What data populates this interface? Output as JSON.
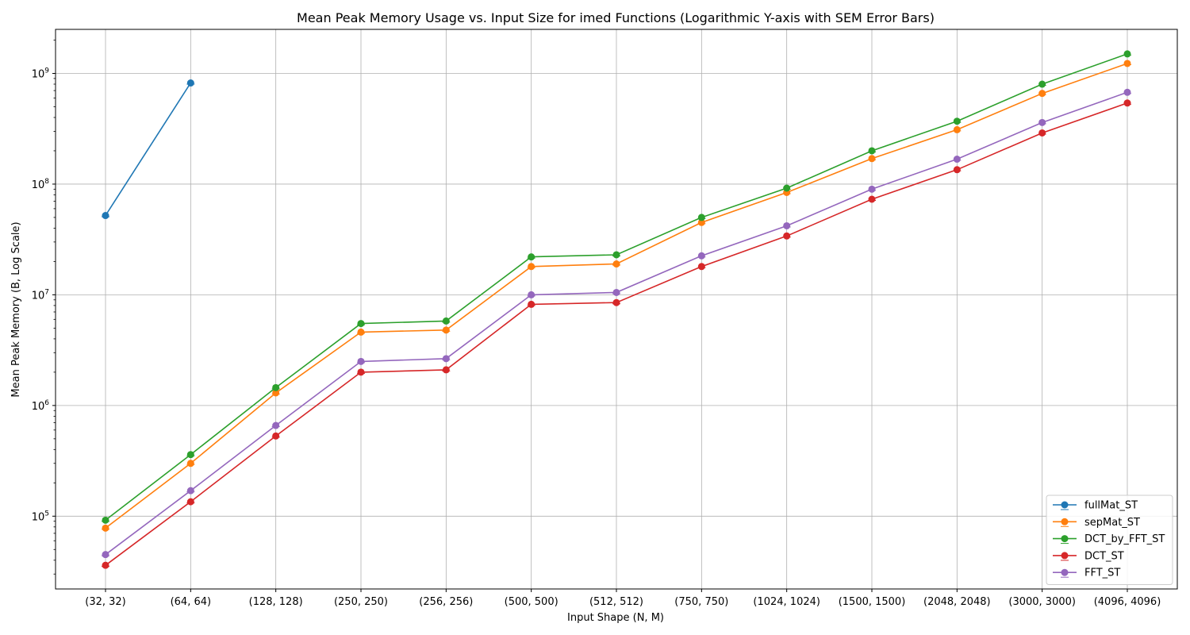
{
  "chart_data": {
    "type": "line",
    "title": "Mean Peak Memory Usage vs. Input Size for imed Functions (Logarithmic Y-axis with SEM Error Bars)",
    "xlabel": "Input Shape (N, M)",
    "ylabel": "Mean Peak Memory (B, Log Scale)",
    "yscale": "log",
    "ylim": [
      22000,
      2500000000
    ],
    "grid": true,
    "legend_position": "lower right",
    "categories": [
      "(32, 32)",
      "(64, 64)",
      "(128, 128)",
      "(250, 250)",
      "(256, 256)",
      "(500, 500)",
      "(512, 512)",
      "(750, 750)",
      "(1024, 1024)",
      "(1500, 1500)",
      "(2048, 2048)",
      "(3000, 3000)",
      "(4096, 4096)"
    ],
    "yticks": [
      {
        "value": 100000,
        "base": "10",
        "exp": "5"
      },
      {
        "value": 1000000,
        "base": "10",
        "exp": "6"
      },
      {
        "value": 10000000,
        "base": "10",
        "exp": "7"
      },
      {
        "value": 100000000,
        "base": "10",
        "exp": "8"
      },
      {
        "value": 1000000000,
        "base": "10",
        "exp": "9"
      }
    ],
    "series": [
      {
        "name": "fullMat_ST",
        "color": "#1f77b4",
        "values": [
          52000000,
          820000000,
          null,
          null,
          null,
          null,
          null,
          null,
          null,
          null,
          null,
          null,
          null
        ]
      },
      {
        "name": "sepMat_ST",
        "color": "#ff7f0e",
        "values": [
          78000,
          300000,
          1300000,
          4600000,
          4800000,
          18000000,
          19000000,
          45000000,
          84000000,
          170000000,
          310000000,
          660000000,
          1230000000
        ]
      },
      {
        "name": "DCT_by_FFT_ST",
        "color": "#2ca02c",
        "values": [
          92000,
          360000,
          1450000,
          5500000,
          5800000,
          22000000,
          23000000,
          50000000,
          92000000,
          200000000,
          370000000,
          800000000,
          1500000000
        ]
      },
      {
        "name": "DCT_ST",
        "color": "#d62728",
        "values": [
          36000,
          135000,
          530000,
          2000000,
          2100000,
          8200000,
          8500000,
          18000000,
          34000000,
          73000000,
          135000000,
          290000000,
          540000000
        ]
      },
      {
        "name": "FFT_ST",
        "color": "#9467bd",
        "values": [
          45000,
          170000,
          660000,
          2500000,
          2650000,
          10000000,
          10500000,
          22500000,
          42000000,
          90000000,
          168000000,
          360000000,
          675000000
        ]
      }
    ]
  }
}
